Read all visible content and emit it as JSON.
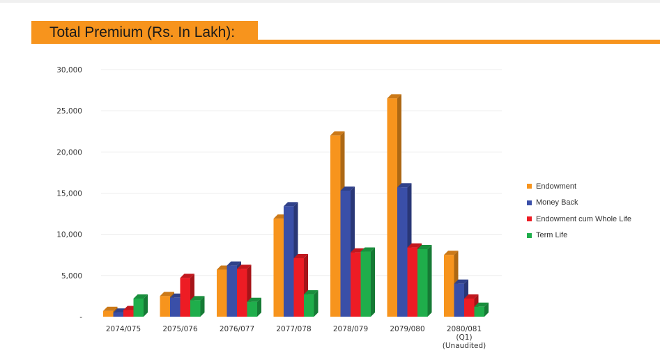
{
  "header": {
    "title": "Total Premium (Rs. In Lakh):"
  },
  "chart_data": {
    "type": "bar",
    "title": "",
    "xlabel": "",
    "ylabel": "",
    "categories": [
      "2074/075",
      "2075/076",
      "2076/077",
      "2077/078",
      "2078/079",
      "2079/080",
      "2080/081 (Q1) (Unaudited)"
    ],
    "category_lines": [
      [
        "2074/075"
      ],
      [
        "2075/076"
      ],
      [
        "2076/077"
      ],
      [
        "2077/078"
      ],
      [
        "2078/079"
      ],
      [
        "2079/080"
      ],
      [
        "2080/081",
        "(Q1)",
        "(Unaudited)"
      ]
    ],
    "series": [
      {
        "name": "Endowment",
        "color": "#f7941d",
        "values": [
          700,
          2500,
          5700,
          11900,
          22000,
          26500,
          7500
        ]
      },
      {
        "name": "Money Back",
        "color": "#3a4fa8",
        "values": [
          500,
          2300,
          6200,
          13400,
          15300,
          15700,
          4000
        ]
      },
      {
        "name": "Endowment cum Whole Life",
        "color": "#ed1c24",
        "values": [
          800,
          4700,
          5800,
          7100,
          7800,
          8400,
          2200
        ]
      },
      {
        "name": "Term Life",
        "color": "#1fae4b",
        "values": [
          2200,
          2000,
          1800,
          2700,
          7900,
          8200,
          1200
        ]
      }
    ],
    "y_ticks": [
      {
        "value": 0,
        "label": "-"
      },
      {
        "value": 5000,
        "label": "5,000"
      },
      {
        "value": 10000,
        "label": "10,000"
      },
      {
        "value": 15000,
        "label": "15,000"
      },
      {
        "value": 20000,
        "label": "20,000"
      },
      {
        "value": 25000,
        "label": "25,000"
      },
      {
        "value": 30000,
        "label": "30,000"
      }
    ],
    "ylim": [
      0,
      30000
    ],
    "grid": true,
    "legend_position": "right"
  }
}
